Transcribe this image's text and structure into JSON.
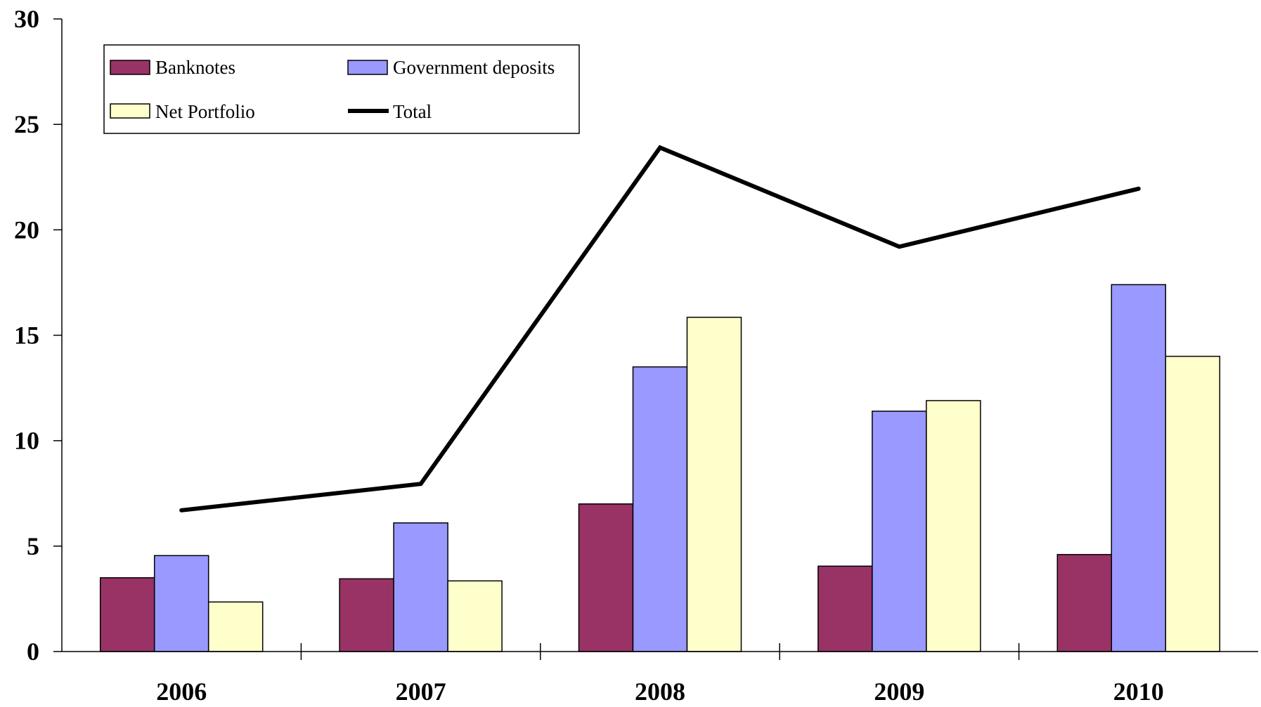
{
  "chart_data": {
    "type": "bar",
    "categories": [
      "2006",
      "2007",
      "2008",
      "2009",
      "2010"
    ],
    "series": [
      {
        "name": "Banknotes",
        "kind": "bar",
        "color": "#993366",
        "values": [
          3.5,
          3.45,
          7.0,
          4.05,
          4.6
        ]
      },
      {
        "name": "Government deposits",
        "kind": "bar",
        "color": "#9999ff",
        "values": [
          4.55,
          6.1,
          13.5,
          11.4,
          17.4
        ]
      },
      {
        "name": "Net Portfolio",
        "kind": "bar",
        "color": "#ffffcc",
        "values": [
          2.35,
          3.35,
          15.85,
          11.9,
          14.0
        ]
      },
      {
        "name": "Total",
        "kind": "line",
        "color": "#000000",
        "values": [
          6.7,
          7.95,
          23.9,
          19.2,
          21.95
        ]
      }
    ],
    "yticks": [
      "0",
      "5",
      "10",
      "15",
      "20",
      "25",
      "30"
    ],
    "ylim": [
      0,
      30
    ],
    "title": "",
    "xlabel": "",
    "ylabel": "",
    "grid": false,
    "legend_position": "top-left"
  }
}
